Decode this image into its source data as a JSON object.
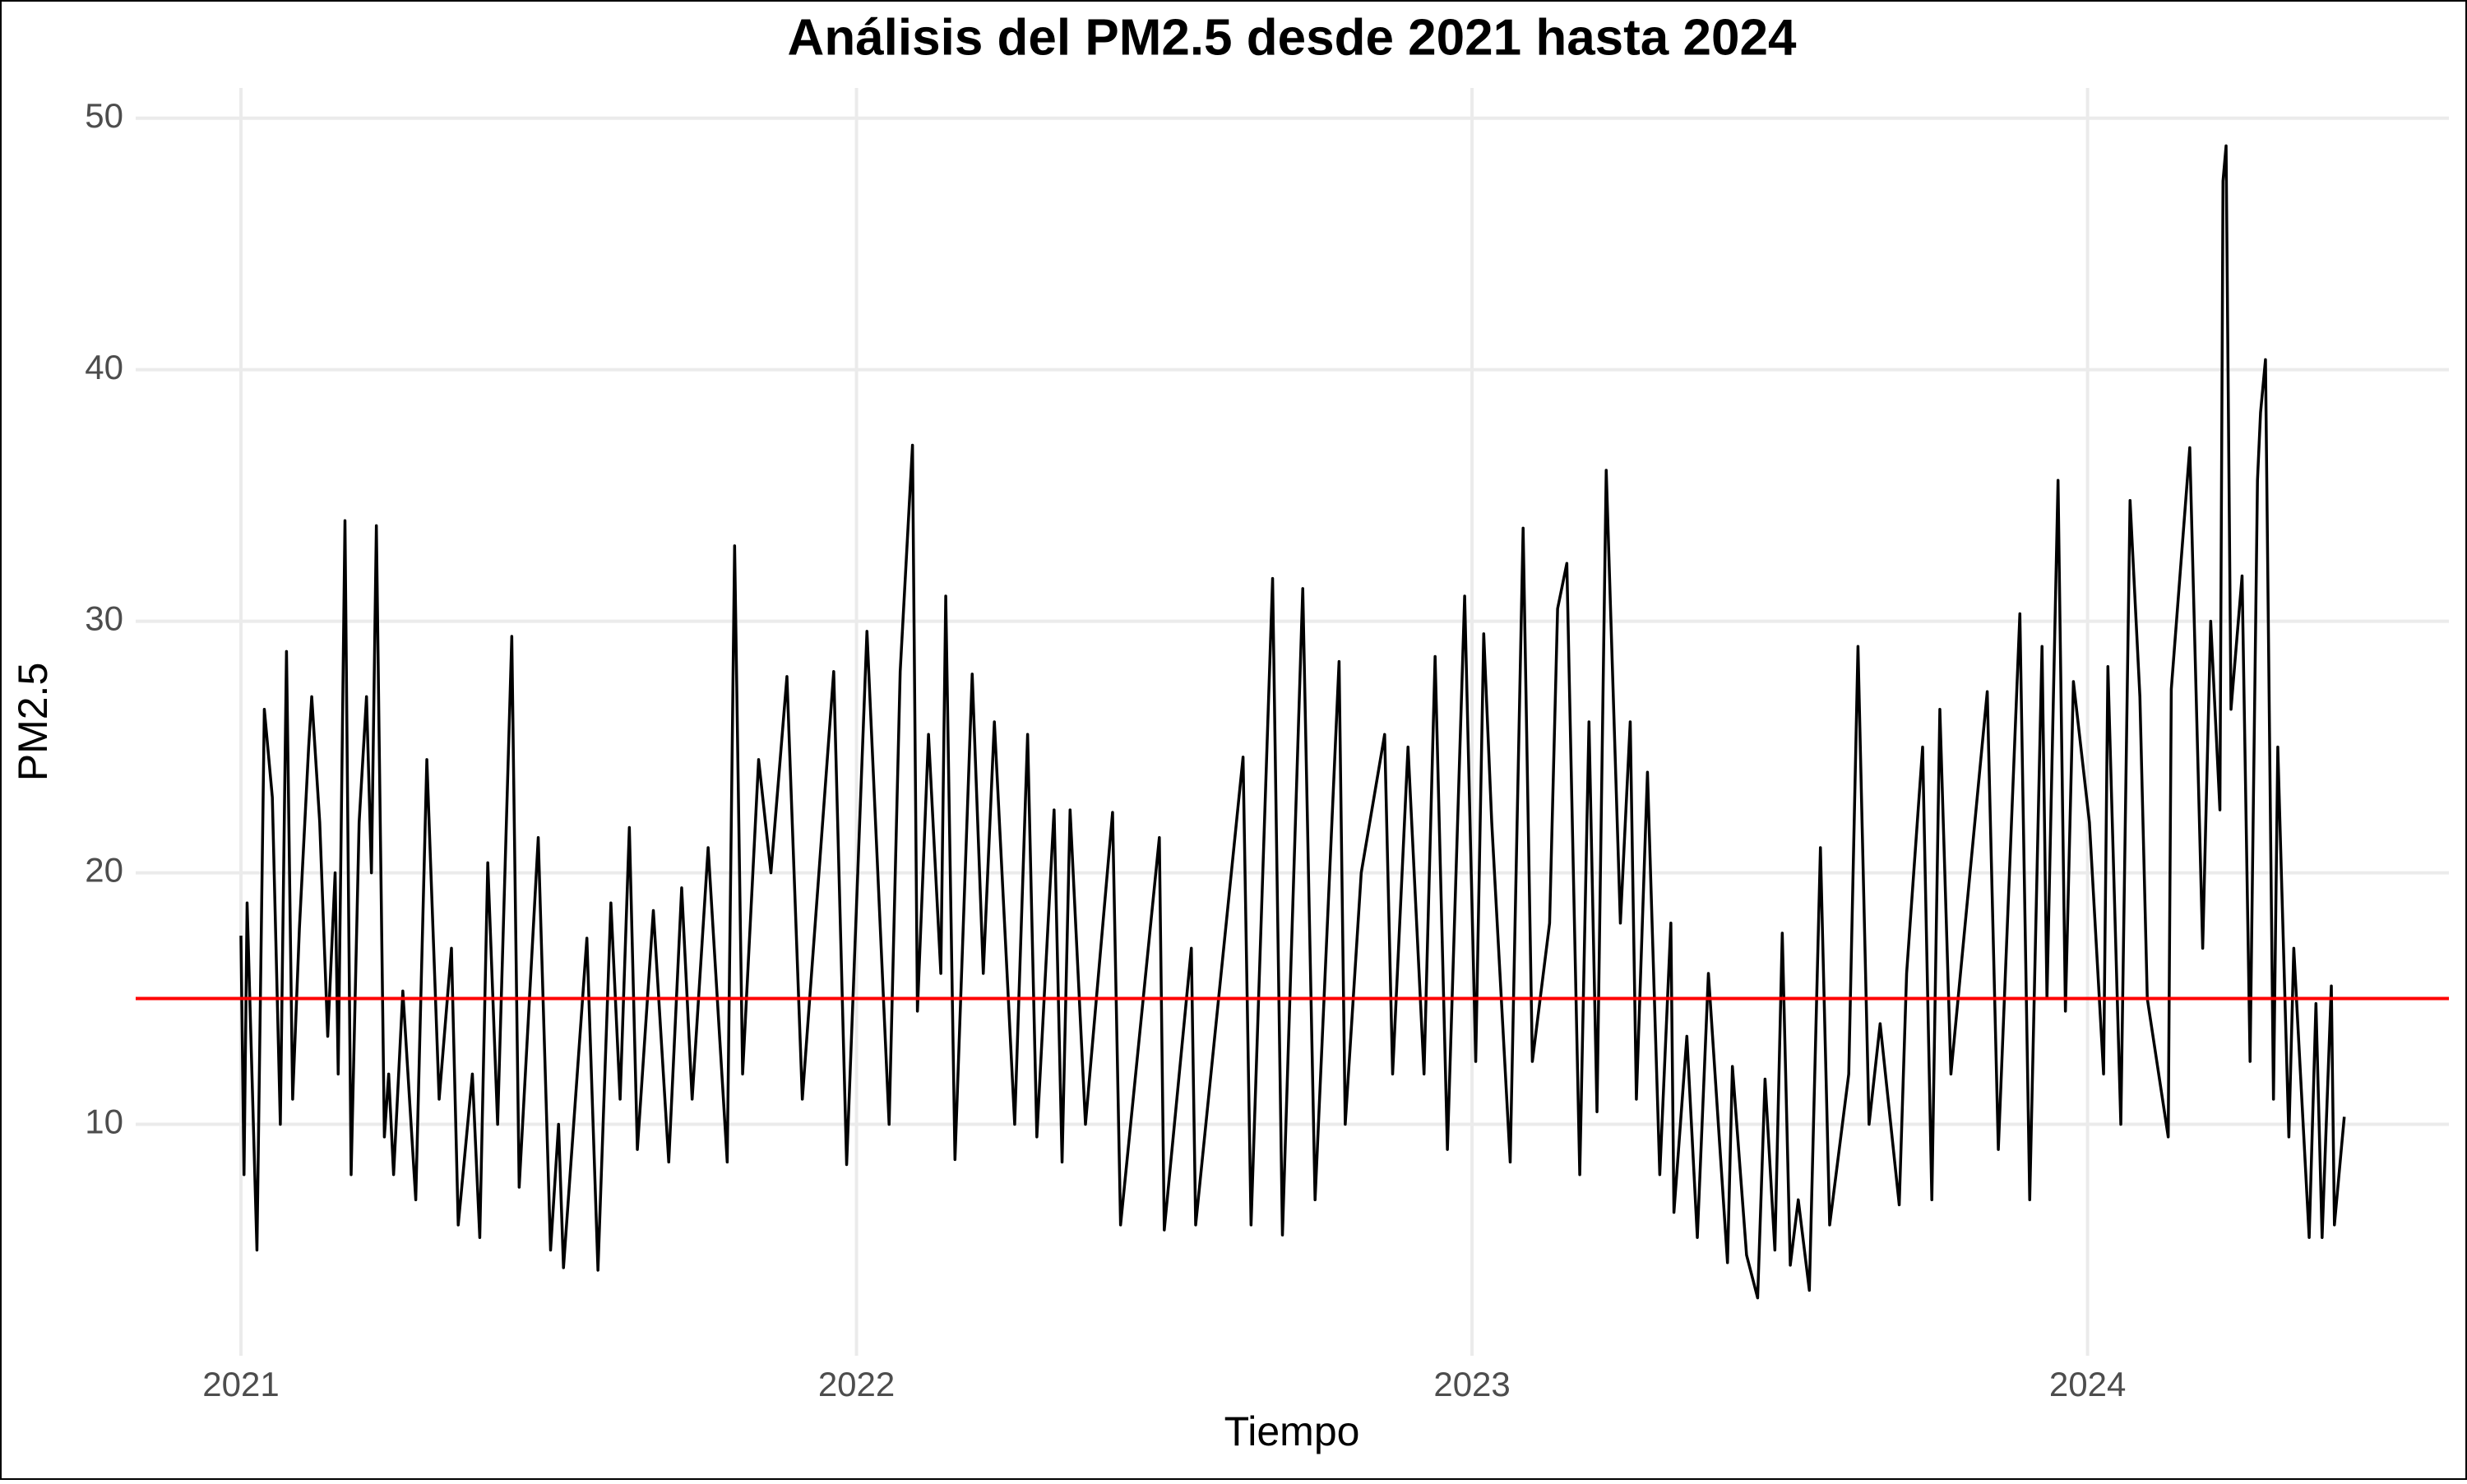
{
  "chart_data": {
    "type": "line",
    "title": "Análisis del PM2.5 desde 2021 hasta 2024",
    "x_label": "Tiempo",
    "y_label": "PM2.5",
    "color": "#000000",
    "grid": true,
    "hline": {
      "value": 15,
      "color": "#ff0000"
    },
    "xlim": [
      2020.829,
      2024.587
    ],
    "xticks": [
      2021,
      2022,
      2023,
      2024
    ],
    "ylim": [
      0.8,
      51.2
    ],
    "yticks": [
      10,
      20,
      30,
      40,
      50
    ],
    "x": [
      2021.0,
      2021.005,
      2021.01,
      2021.026,
      2021.038,
      2021.051,
      2021.064,
      2021.074,
      2021.084,
      2021.095,
      2021.11,
      2021.115,
      2021.128,
      2021.141,
      2021.153,
      2021.158,
      2021.169,
      2021.179,
      2021.192,
      2021.204,
      2021.212,
      2021.22,
      2021.233,
      2021.24,
      2021.248,
      2021.263,
      2021.284,
      2021.302,
      2021.322,
      2021.342,
      2021.353,
      2021.376,
      2021.388,
      2021.401,
      2021.417,
      2021.44,
      2021.452,
      2021.483,
      2021.503,
      2021.516,
      2021.524,
      2021.562,
      2021.58,
      2021.601,
      2021.616,
      2021.631,
      2021.644,
      2021.67,
      2021.695,
      2021.716,
      2021.733,
      2021.759,
      2021.79,
      2021.802,
      2021.815,
      2021.841,
      2021.861,
      2021.887,
      2021.912,
      2021.963,
      2021.984,
      2022.017,
      2022.053,
      2022.071,
      2022.091,
      2022.099,
      2022.117,
      2022.137,
      2022.145,
      2022.16,
      2022.188,
      2022.206,
      2022.224,
      2022.257,
      2022.278,
      2022.293,
      2022.321,
      2022.334,
      2022.347,
      2022.372,
      2022.416,
      2022.429,
      2022.492,
      2022.5,
      2022.544,
      2022.551,
      2022.628,
      2022.641,
      2022.676,
      2022.692,
      2022.725,
      2022.745,
      2022.784,
      2022.794,
      2022.82,
      2022.858,
      2022.871,
      2022.896,
      2022.922,
      2022.94,
      2022.96,
      2022.988,
      2023.006,
      2023.019,
      2023.032,
      2023.062,
      2023.083,
      2023.098,
      2023.126,
      2023.139,
      2023.154,
      2023.175,
      2023.19,
      2023.203,
      2023.218,
      2023.241,
      2023.257,
      2023.267,
      2023.285,
      2023.305,
      2023.323,
      2023.328,
      2023.349,
      2023.366,
      2023.384,
      2023.415,
      2023.423,
      2023.446,
      2023.464,
      2023.476,
      2023.492,
      2023.504,
      2023.517,
      2023.53,
      2023.548,
      2023.566,
      2023.581,
      2023.612,
      2023.627,
      2023.645,
      2023.663,
      2023.694,
      2023.706,
      2023.732,
      2023.747,
      2023.76,
      2023.778,
      2023.837,
      2023.855,
      2023.89,
      2023.906,
      2023.926,
      2023.934,
      2023.952,
      2023.964,
      2023.977,
      2024.003,
      2024.026,
      2024.033,
      2024.054,
      2024.069,
      2024.085,
      2024.097,
      2024.131,
      2024.136,
      2024.166,
      2024.187,
      2024.2,
      2024.215,
      2024.22,
      2024.225,
      2024.233,
      2024.251,
      2024.264,
      2024.276,
      2024.281,
      2024.289,
      2024.302,
      2024.309,
      2024.327,
      2024.335,
      2024.36,
      2024.371,
      2024.381,
      2024.396,
      2024.401,
      2024.417
    ],
    "values": [
      17.5,
      8,
      18.8,
      5,
      26.5,
      23,
      10,
      28.8,
      11,
      17.8,
      25,
      27,
      22,
      13.5,
      20,
      12,
      34,
      8,
      22,
      27,
      20,
      33.8,
      9.5,
      12,
      8,
      15.3,
      7,
      24.5,
      11,
      17,
      6,
      12,
      5.5,
      20.4,
      10,
      29.4,
      7.5,
      21.4,
      5,
      10,
      4.3,
      17.4,
      4.2,
      18.8,
      11,
      21.8,
      9,
      18.5,
      8.5,
      19.4,
      11,
      21,
      8.5,
      33,
      12,
      24.5,
      20,
      27.8,
      11,
      28,
      8.4,
      29.6,
      10,
      28,
      37,
      14.5,
      25.5,
      16,
      31,
      8.6,
      27.9,
      16,
      26,
      10,
      25.5,
      9.5,
      22.5,
      8.5,
      22.5,
      10,
      22.4,
      6,
      21.4,
      5.8,
      17,
      6,
      24.6,
      6,
      31.7,
      5.6,
      31.3,
      7,
      28.4,
      10,
      20,
      25.5,
      12,
      25,
      12,
      28.6,
      9,
      31,
      12.5,
      29.5,
      22,
      8.5,
      33.7,
      12.5,
      18,
      30.5,
      32.3,
      8,
      26,
      10.5,
      36,
      18,
      26,
      11,
      24,
      8,
      18,
      6.5,
      13.5,
      5.5,
      16,
      4.5,
      12.3,
      4.8,
      3.1,
      11.8,
      5,
      17.6,
      4.4,
      7,
      3.4,
      21,
      6,
      12,
      29,
      10,
      14,
      6.8,
      16,
      25,
      7,
      26.5,
      12,
      27.2,
      9,
      30.3,
      7,
      29,
      15,
      35.6,
      14.5,
      27.6,
      22,
      12,
      28.2,
      10,
      34.8,
      27,
      15,
      9.5,
      27.3,
      36.9,
      17,
      30,
      22.5,
      47.5,
      48.9,
      26.5,
      31.8,
      12.5,
      35.6,
      38.3,
      40.4,
      11,
      25,
      9.5,
      17,
      5.5,
      14.8,
      5.5,
      15.5,
      6,
      10.3
    ]
  }
}
